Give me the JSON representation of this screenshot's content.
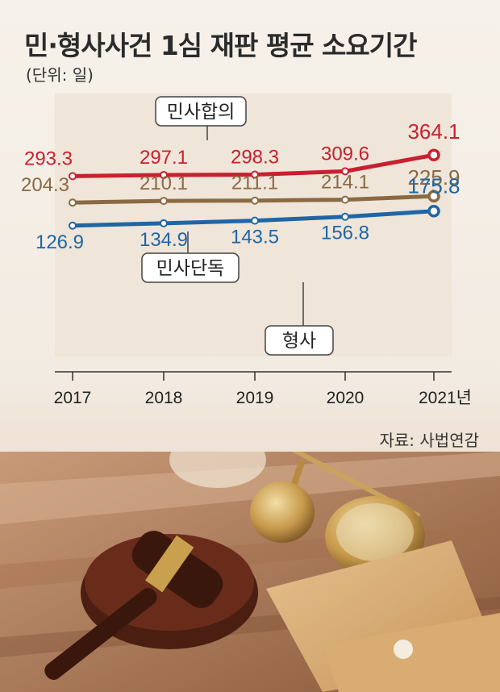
{
  "header": {
    "title": "민·형사사건 1심 재판 평균 소요기간",
    "unit": "(단위: 일)"
  },
  "footer": {
    "source": "자료: 사법연감"
  },
  "colors": {
    "civil_collegiate": "#c8202f",
    "civil_single": "#8a6a43",
    "criminal": "#1f66a6",
    "panel": "#efe5d9"
  },
  "chart_data": {
    "type": "line",
    "title": "민·형사사건 1심 재판 평균 소요기간",
    "unit": "(단위: 일)",
    "categories": [
      "2017",
      "2018",
      "2019",
      "2020",
      "2021년"
    ],
    "series": [
      {
        "name": "민사합의",
        "values": [
          293.3,
          297.1,
          298.3,
          309.6,
          364.1
        ],
        "labels": [
          "293.3",
          "297.1",
          "298.3",
          "309.6",
          "364.1"
        ]
      },
      {
        "name": "민사단독",
        "values": [
          204.3,
          210.1,
          211.1,
          214.1,
          225.9
        ],
        "labels": [
          "204.3",
          "210.1",
          "211.1",
          "214.1",
          "225.9"
        ]
      },
      {
        "name": "형사",
        "values": [
          126.9,
          134.9,
          143.5,
          156.8,
          175.8
        ],
        "labels": [
          "126.9",
          "134.9",
          "143.5",
          "156.8",
          "175.8"
        ]
      }
    ]
  }
}
